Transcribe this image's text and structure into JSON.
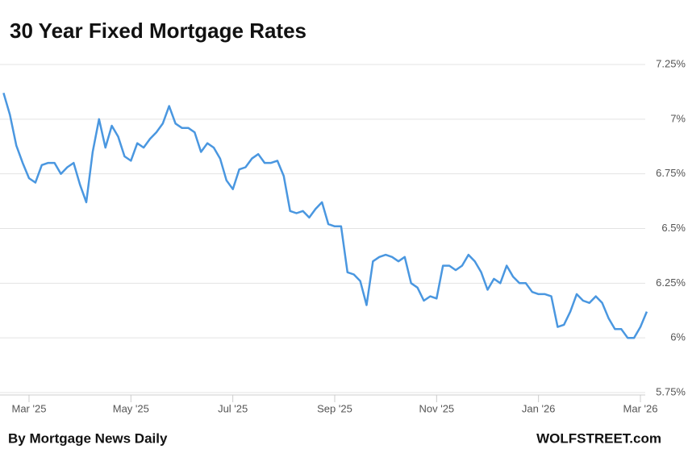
{
  "chart_data": {
    "type": "line",
    "title": "30 Year Fixed Mortgage Rates",
    "source": "By Mortgage News Daily",
    "credit": "WOLFSTREET.com",
    "categories": [
      null,
      null,
      null,
      null,
      "Mar '25",
      null,
      null,
      null,
      null,
      null,
      null,
      null,
      null,
      null,
      null,
      null,
      null,
      null,
      null,
      null,
      "May '25",
      null,
      null,
      null,
      null,
      null,
      null,
      null,
      null,
      null,
      null,
      null,
      null,
      null,
      null,
      null,
      "Jul '25",
      null,
      null,
      null,
      null,
      null,
      null,
      null,
      null,
      null,
      null,
      null,
      null,
      null,
      null,
      null,
      "Sep '25",
      null,
      null,
      null,
      null,
      null,
      null,
      null,
      null,
      null,
      null,
      null,
      null,
      null,
      null,
      null,
      "Nov '25",
      null,
      null,
      null,
      null,
      null,
      null,
      null,
      null,
      null,
      null,
      null,
      null,
      null,
      null,
      null,
      "Jan '26",
      null,
      null,
      null,
      null,
      null,
      null,
      null,
      null,
      null,
      null,
      null,
      null,
      null,
      null,
      null,
      "Mar '26",
      null
    ],
    "series": [
      {
        "name": "30 Year Fixed",
        "color": "#4a97e0",
        "values": [
          7.12,
          7.02,
          6.88,
          6.8,
          6.73,
          6.71,
          6.79,
          6.8,
          6.8,
          6.75,
          6.78,
          6.8,
          6.7,
          6.62,
          6.85,
          7.0,
          6.87,
          6.97,
          6.92,
          6.83,
          6.81,
          6.89,
          6.87,
          6.91,
          6.94,
          6.98,
          7.06,
          6.98,
          6.96,
          6.96,
          6.94,
          6.85,
          6.89,
          6.87,
          6.82,
          6.72,
          6.68,
          6.77,
          6.78,
          6.82,
          6.84,
          6.8,
          6.8,
          6.81,
          6.74,
          6.58,
          6.57,
          6.58,
          6.55,
          6.59,
          6.62,
          6.52,
          6.51,
          6.51,
          6.3,
          6.29,
          6.26,
          6.15,
          6.35,
          6.37,
          6.38,
          6.37,
          6.35,
          6.37,
          6.25,
          6.23,
          6.17,
          6.19,
          6.18,
          6.33,
          6.33,
          6.31,
          6.33,
          6.38,
          6.35,
          6.3,
          6.22,
          6.27,
          6.25,
          6.33,
          6.28,
          6.25,
          6.25,
          6.21,
          6.2,
          6.2,
          6.19,
          6.05,
          6.06,
          6.12,
          6.2,
          6.17,
          6.16,
          6.19,
          6.16,
          6.09,
          6.04,
          6.04,
          6.0,
          6.0,
          6.05,
          6.12
        ]
      }
    ],
    "ylim": [
      5.75,
      7.25
    ],
    "yticks": [
      {
        "value": 5.75,
        "label": "5.75%"
      },
      {
        "value": 6,
        "label": "6%"
      },
      {
        "value": 6.25,
        "label": "6.25%"
      },
      {
        "value": 6.5,
        "label": "6.5%"
      },
      {
        "value": 6.75,
        "label": "6.75%"
      },
      {
        "value": 7,
        "label": "7%"
      },
      {
        "value": 7.25,
        "label": "7.25%"
      }
    ],
    "grid": true
  }
}
